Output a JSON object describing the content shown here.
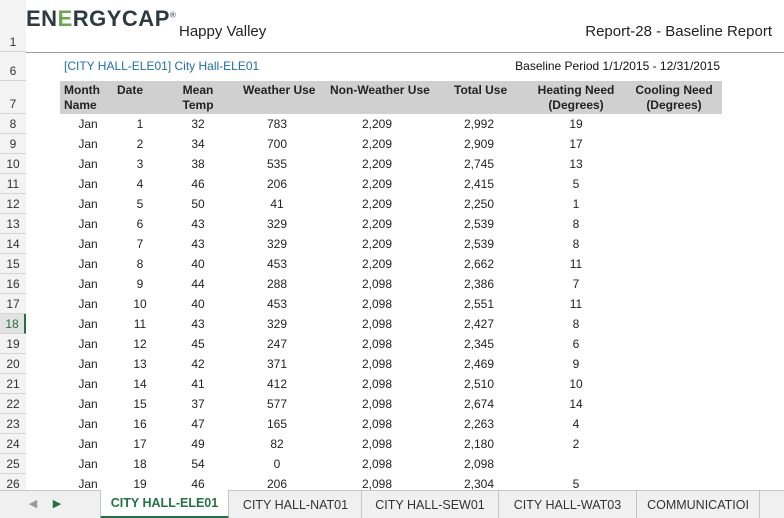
{
  "header": {
    "brand_main": "EN",
    "brand_g": "E",
    "brand_rest": "RGYCAP",
    "brand_tm": "®",
    "company": "Happy Valley",
    "report_title": "Report-28 - Baseline Report"
  },
  "meter": {
    "label": "[CITY HALL-ELE01] City Hall-ELE01",
    "period": "Baseline Period 1/1/2015 - 12/31/2015"
  },
  "columns": {
    "month_1": "Month",
    "month_2": "Name",
    "date": "Date",
    "mean_1": "Mean",
    "mean_2": "Temp",
    "weather": "Weather Use",
    "nonweather": "Non-Weather Use",
    "total": "Total Use",
    "heating_1": "Heating Need",
    "heating_2": "(Degrees)",
    "cooling_1": "Cooling Need",
    "cooling_2": "(Degrees)"
  },
  "row_headers": {
    "r1": "1",
    "r6": "6",
    "r7": "7",
    "r8": "8",
    "r9": "9",
    "r10": "10",
    "r11": "11",
    "r12": "12",
    "r13": "13",
    "r14": "14",
    "r15": "15",
    "r16": "16",
    "r17": "17",
    "r18": "18",
    "r19": "19",
    "r20": "20",
    "r21": "21",
    "r22": "22",
    "r23": "23",
    "r24": "24",
    "r25": "25",
    "r26": "26"
  },
  "rows": [
    {
      "month": "Jan",
      "date": "1",
      "temp": "32",
      "weather": "783",
      "nonweather": "2,209",
      "total": "2,992",
      "heating": "19",
      "cooling": ""
    },
    {
      "month": "Jan",
      "date": "2",
      "temp": "34",
      "weather": "700",
      "nonweather": "2,209",
      "total": "2,909",
      "heating": "17",
      "cooling": ""
    },
    {
      "month": "Jan",
      "date": "3",
      "temp": "38",
      "weather": "535",
      "nonweather": "2,209",
      "total": "2,745",
      "heating": "13",
      "cooling": ""
    },
    {
      "month": "Jan",
      "date": "4",
      "temp": "46",
      "weather": "206",
      "nonweather": "2,209",
      "total": "2,415",
      "heating": "5",
      "cooling": ""
    },
    {
      "month": "Jan",
      "date": "5",
      "temp": "50",
      "weather": "41",
      "nonweather": "2,209",
      "total": "2,250",
      "heating": "1",
      "cooling": ""
    },
    {
      "month": "Jan",
      "date": "6",
      "temp": "43",
      "weather": "329",
      "nonweather": "2,209",
      "total": "2,539",
      "heating": "8",
      "cooling": ""
    },
    {
      "month": "Jan",
      "date": "7",
      "temp": "43",
      "weather": "329",
      "nonweather": "2,209",
      "total": "2,539",
      "heating": "8",
      "cooling": ""
    },
    {
      "month": "Jan",
      "date": "8",
      "temp": "40",
      "weather": "453",
      "nonweather": "2,209",
      "total": "2,662",
      "heating": "11",
      "cooling": ""
    },
    {
      "month": "Jan",
      "date": "9",
      "temp": "44",
      "weather": "288",
      "nonweather": "2,098",
      "total": "2,386",
      "heating": "7",
      "cooling": ""
    },
    {
      "month": "Jan",
      "date": "10",
      "temp": "40",
      "weather": "453",
      "nonweather": "2,098",
      "total": "2,551",
      "heating": "11",
      "cooling": ""
    },
    {
      "month": "Jan",
      "date": "11",
      "temp": "43",
      "weather": "329",
      "nonweather": "2,098",
      "total": "2,427",
      "heating": "8",
      "cooling": ""
    },
    {
      "month": "Jan",
      "date": "12",
      "temp": "45",
      "weather": "247",
      "nonweather": "2,098",
      "total": "2,345",
      "heating": "6",
      "cooling": ""
    },
    {
      "month": "Jan",
      "date": "13",
      "temp": "42",
      "weather": "371",
      "nonweather": "2,098",
      "total": "2,469",
      "heating": "9",
      "cooling": ""
    },
    {
      "month": "Jan",
      "date": "14",
      "temp": "41",
      "weather": "412",
      "nonweather": "2,098",
      "total": "2,510",
      "heating": "10",
      "cooling": ""
    },
    {
      "month": "Jan",
      "date": "15",
      "temp": "37",
      "weather": "577",
      "nonweather": "2,098",
      "total": "2,674",
      "heating": "14",
      "cooling": ""
    },
    {
      "month": "Jan",
      "date": "16",
      "temp": "47",
      "weather": "165",
      "nonweather": "2,098",
      "total": "2,263",
      "heating": "4",
      "cooling": ""
    },
    {
      "month": "Jan",
      "date": "17",
      "temp": "49",
      "weather": "82",
      "nonweather": "2,098",
      "total": "2,180",
      "heating": "2",
      "cooling": ""
    },
    {
      "month": "Jan",
      "date": "18",
      "temp": "54",
      "weather": "0",
      "nonweather": "2,098",
      "total": "2,098",
      "heating": "",
      "cooling": ""
    },
    {
      "month": "Jan",
      "date": "19",
      "temp": "46",
      "weather": "206",
      "nonweather": "2,098",
      "total": "2,304",
      "heating": "5",
      "cooling": ""
    }
  ],
  "tabs": {
    "t1": "CITY HALL-ELE01",
    "t2": "CITY HALL-NAT01",
    "t3": "CITY HALL-SEW01",
    "t4": "CITY HALL-WAT03",
    "t5": "COMMUNICATIOI"
  },
  "nav": {
    "prev": "◀",
    "next": "▶"
  },
  "colors": {
    "accent": "#217346",
    "link": "#1f6fa8",
    "brand_green": "#6aa84f"
  }
}
